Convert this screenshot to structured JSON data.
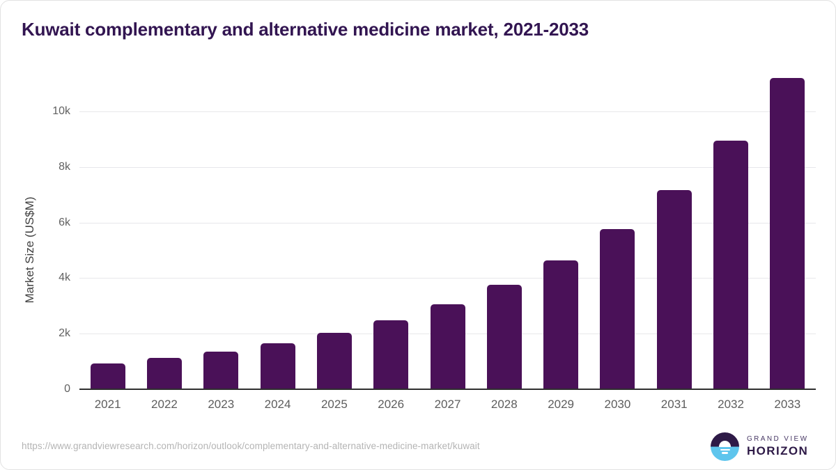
{
  "chart_data": {
    "type": "bar",
    "title": "Kuwait complementary and alternative medicine market, 2021-2033",
    "categories": [
      "2021",
      "2022",
      "2023",
      "2024",
      "2025",
      "2026",
      "2027",
      "2028",
      "2029",
      "2030",
      "2031",
      "2032",
      "2033"
    ],
    "values": [
      925,
      1130,
      1355,
      1655,
      2030,
      2470,
      3060,
      3760,
      4640,
      5770,
      7170,
      8950,
      11200
    ],
    "xlabel": "",
    "ylabel": "Market Size (US$M)",
    "ylim": [
      0,
      11600
    ],
    "yticks": [
      {
        "value": 0,
        "label": "0"
      },
      {
        "value": 2000,
        "label": "2k"
      },
      {
        "value": 4000,
        "label": "4k"
      },
      {
        "value": 6000,
        "label": "6k"
      },
      {
        "value": 8000,
        "label": "8k"
      },
      {
        "value": 10000,
        "label": "10k"
      }
    ],
    "grid": "horizontal",
    "legend": "none",
    "bar_color": "#4a1158"
  },
  "colors": {
    "title_text": "#321551",
    "bar": "#4a1158",
    "gridline": "#e7e7ea",
    "axis_line": "#2f2f2f",
    "tick_label": "#5d5d5d",
    "url_text": "#b4b4b4",
    "logo_purple": "#2e1a47",
    "logo_blue": "#5ec5ed"
  },
  "footer": {
    "source_url": "https://www.grandviewresearch.com/horizon/outlook/complementary-and-alternative-medicine-market/kuwait",
    "brand": {
      "line1": "GRAND VIEW",
      "line2": "HORIZON"
    }
  }
}
